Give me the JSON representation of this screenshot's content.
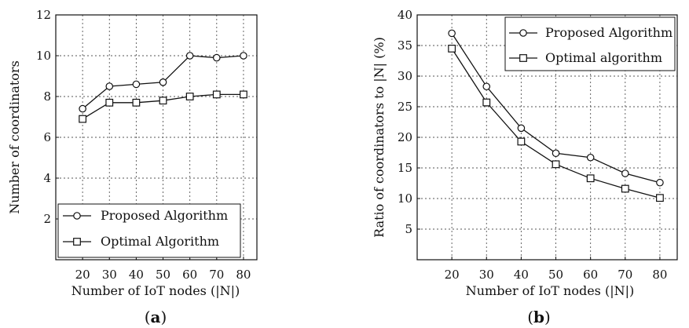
{
  "chart_data": [
    {
      "type": "line",
      "panel_caption": "a",
      "xlabel": "Number of IoT nodes (|N|)",
      "ylabel": "Number of coordinators",
      "x": [
        20,
        30,
        40,
        50,
        60,
        70,
        80
      ],
      "xlim": [
        10,
        85
      ],
      "ylim": [
        0,
        12
      ],
      "xticks": [
        20,
        30,
        40,
        50,
        60,
        70,
        80
      ],
      "yticks": [
        2,
        4,
        6,
        8,
        10,
        12
      ],
      "grid": true,
      "legend_position": "bottom-left",
      "series": [
        {
          "name": "Proposed Algorithm",
          "marker": "circle",
          "values": [
            7.4,
            8.5,
            8.6,
            8.7,
            10.0,
            9.9,
            10.0
          ]
        },
        {
          "name": "Optimal Algorithm",
          "marker": "square",
          "values": [
            6.9,
            7.7,
            7.7,
            7.8,
            8.0,
            8.1,
            8.1
          ]
        }
      ]
    },
    {
      "type": "line",
      "panel_caption": "b",
      "xlabel": "Number of IoT nodes (|N|)",
      "ylabel": "Ratio of coordinators to |N| (%)",
      "x": [
        20,
        30,
        40,
        50,
        60,
        70,
        80
      ],
      "xlim": [
        10,
        85
      ],
      "ylim": [
        0,
        40
      ],
      "xticks": [
        20,
        30,
        40,
        50,
        60,
        70,
        80
      ],
      "yticks": [
        5,
        10,
        15,
        20,
        25,
        30,
        35,
        40
      ],
      "grid": true,
      "legend_position": "top-right",
      "series": [
        {
          "name": "Proposed Algorithm",
          "marker": "circle",
          "values": [
            37.0,
            28.3,
            21.5,
            17.4,
            16.7,
            14.1,
            12.6
          ]
        },
        {
          "name": "Optimal algorithm",
          "marker": "square",
          "values": [
            34.5,
            25.7,
            19.3,
            15.6,
            13.3,
            11.6,
            10.1
          ]
        }
      ]
    }
  ]
}
